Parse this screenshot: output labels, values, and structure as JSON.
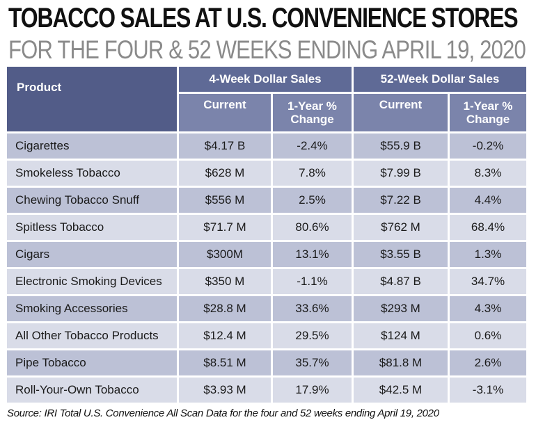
{
  "title": "TOBACCO SALES AT U.S. CONVENIENCE STORES",
  "subtitle": "FOR THE FOUR & 52 WEEKS ENDING APRIL 19, 2020",
  "table": {
    "product_header": "Product",
    "group4_header": "4-Week Dollar Sales",
    "group52_header": "52-Week Dollar Sales",
    "current_label": "Current",
    "change_label_line1": "1-Year %",
    "change_label_line2": "Change",
    "rows": [
      {
        "product": "Cigarettes",
        "c4": "$4.17 B",
        "p4": "-2.4%",
        "c52": "$55.9 B",
        "p52": "-0.2%"
      },
      {
        "product": "Smokeless Tobacco",
        "c4": "$628 M",
        "p4": "7.8%",
        "c52": "$7.99 B",
        "p52": "8.3%"
      },
      {
        "product": "Chewing Tobacco Snuff",
        "c4": "$556 M",
        "p4": "2.5%",
        "c52": "$7.22 B",
        "p52": "4.4%"
      },
      {
        "product": "Spitless Tobacco",
        "c4": "$71.7 M",
        "p4": "80.6%",
        "c52": "$762 M",
        "p52": "68.4%"
      },
      {
        "product": "Cigars",
        "c4": "$300M",
        "p4": "13.1%",
        "c52": "$3.55 B",
        "p52": "1.3%"
      },
      {
        "product": "Electronic Smoking Devices",
        "c4": "$350 M",
        "p4": "-1.1%",
        "c52": "$4.87 B",
        "p52": "34.7%"
      },
      {
        "product": "Smoking Accessories",
        "c4": "$28.8 M",
        "p4": "33.6%",
        "c52": "$293 M",
        "p52": "4.3%"
      },
      {
        "product": "All Other Tobacco Products",
        "c4": "$12.4 M",
        "p4": "29.5%",
        "c52": "$124 M",
        "p52": "0.6%"
      },
      {
        "product": "Pipe Tobacco",
        "c4": "$8.51 M",
        "p4": "35.7%",
        "c52": "$81.8 M",
        "p52": "2.6%"
      },
      {
        "product": "Roll-Your-Own Tobacco",
        "c4": "$3.93 M",
        "p4": "17.9%",
        "c52": "$42.5 M",
        "p52": "-3.1%"
      }
    ]
  },
  "source": "Source: IRI Total U.S. Convenience All Scan Data for the four and 52 weeks ending April 19, 2020"
}
